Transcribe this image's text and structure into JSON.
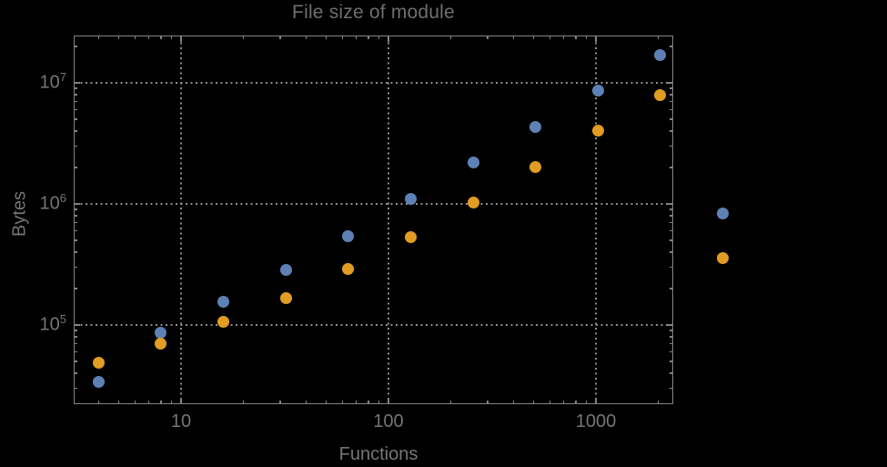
{
  "chart_data": {
    "type": "scatter",
    "title": "File size of module",
    "xlabel": "Functions",
    "ylabel": "Bytes",
    "x_scale": "log",
    "y_scale": "log",
    "grid": true,
    "legend_position": "none",
    "x_tick_labels": [
      "10",
      "100",
      "1000"
    ],
    "x_tick_values": [
      10,
      100,
      1000
    ],
    "y_tick_base": "10",
    "y_tick_exponents": [
      "5",
      "6",
      "7"
    ],
    "y_tick_values": [
      100000,
      1000000,
      10000000
    ],
    "x_range_approx": [
      3.1,
      2400
    ],
    "y_range_approx": [
      22000,
      24000000
    ],
    "x": [
      4,
      8,
      16,
      32,
      64,
      128,
      256,
      512,
      1024,
      2048,
      4096
    ],
    "series": [
      {
        "name": "series-1-blue",
        "color": "#5e81b5",
        "values": [
          34000,
          86000,
          155000,
          285000,
          545000,
          1100000,
          2200000,
          4300000,
          8600000,
          17000000,
          830000
        ]
      },
      {
        "name": "series-2-orange",
        "color": "#e19c24",
        "values": [
          49000,
          70000,
          107000,
          168000,
          290000,
          530000,
          1030000,
          2000000,
          4000000,
          7900000,
          360000
        ]
      }
    ],
    "colors": {
      "background": "#000000",
      "frame": "#838383",
      "grid": "#8e8e8e",
      "text": "#757575"
    }
  }
}
